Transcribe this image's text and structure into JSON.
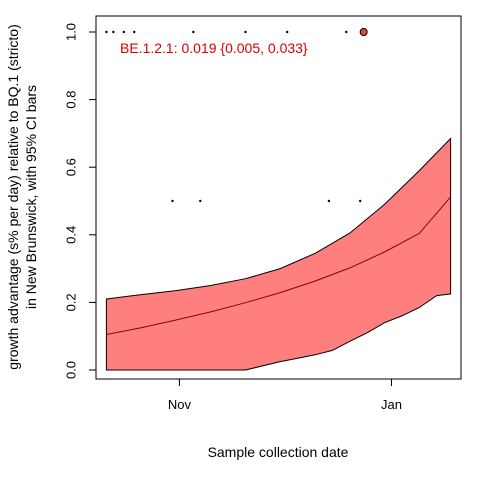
{
  "chart_data": {
    "type": "line",
    "x_axis_type": "date",
    "xlabel": "Sample collection date",
    "ylabel_lines": [
      "growth advantage (s% per day) relative to BQ.1 (stricto)",
      "in New Brunswick, with 95% CI bars"
    ],
    "xlim": [
      "2022-10-08",
      "2023-01-21"
    ],
    "ylim": [
      0,
      1
    ],
    "y_ticks": [
      0.0,
      0.2,
      0.4,
      0.6,
      0.8,
      1.0
    ],
    "y_tick_labels": [
      "0.0",
      "0.2",
      "0.4",
      "0.6",
      "0.8",
      "1.0"
    ],
    "x_ticks": [
      "2022-11-01",
      "2023-01-01"
    ],
    "x_tick_labels": [
      "Nov",
      "Jan"
    ],
    "grid": false,
    "annotation": {
      "text": "BE.1.2.1: 0.019 {0.005, 0.033}",
      "color": "#dd0000"
    },
    "colors": {
      "ribbon_fill": "#ff7f7f",
      "ribbon_stroke": "#000000",
      "fit_line": "#8b0000",
      "marker_fill": "#e8453c"
    },
    "observations": [
      {
        "date": "2022-10-11",
        "value": 1.0
      },
      {
        "date": "2022-10-13",
        "value": 1.0
      },
      {
        "date": "2022-10-16",
        "value": 1.0
      },
      {
        "date": "2022-10-19",
        "value": 1.0
      },
      {
        "date": "2022-10-30",
        "value": 0.5
      },
      {
        "date": "2022-11-07",
        "value": 0.5
      },
      {
        "date": "2022-11-05",
        "value": 1.0
      },
      {
        "date": "2022-11-20",
        "value": 1.0
      },
      {
        "date": "2022-12-02",
        "value": 1.0
      },
      {
        "date": "2022-12-14",
        "value": 0.5
      },
      {
        "date": "2022-12-19",
        "value": 1.0
      },
      {
        "date": "2022-12-23",
        "value": 0.5
      }
    ],
    "highlight_point": {
      "date": "2022-12-24",
      "value": 1.0
    },
    "fit": {
      "x": [
        "2022-10-11",
        "2022-10-21",
        "2022-10-31",
        "2022-11-10",
        "2022-11-20",
        "2022-11-30",
        "2022-12-10",
        "2022-12-20",
        "2022-12-30",
        "2023-01-09",
        "2023-01-18"
      ],
      "y": [
        0.105,
        0.125,
        0.148,
        0.172,
        0.199,
        0.229,
        0.263,
        0.302,
        0.349,
        0.404,
        0.512
      ]
    },
    "ci_upper": {
      "x": [
        "2022-10-11",
        "2022-10-21",
        "2022-10-31",
        "2022-11-10",
        "2022-11-20",
        "2022-11-30",
        "2022-12-10",
        "2022-12-20",
        "2022-12-30",
        "2023-01-09",
        "2023-01-18"
      ],
      "y": [
        0.21,
        0.223,
        0.235,
        0.25,
        0.27,
        0.3,
        0.345,
        0.405,
        0.49,
        0.59,
        0.685
      ]
    },
    "ci_lower": {
      "x": [
        "2022-10-11",
        "2022-10-21",
        "2022-10-31",
        "2022-11-10",
        "2022-11-20",
        "2022-11-30",
        "2022-12-05",
        "2022-12-10",
        "2022-12-15",
        "2022-12-20",
        "2022-12-25",
        "2022-12-30",
        "2023-01-04",
        "2023-01-09",
        "2023-01-14",
        "2023-01-18"
      ],
      "y": [
        0.0,
        0.0,
        0.0,
        0.0,
        0.0,
        0.025,
        0.035,
        0.045,
        0.058,
        0.085,
        0.11,
        0.14,
        0.16,
        0.185,
        0.22,
        0.225
      ]
    }
  }
}
